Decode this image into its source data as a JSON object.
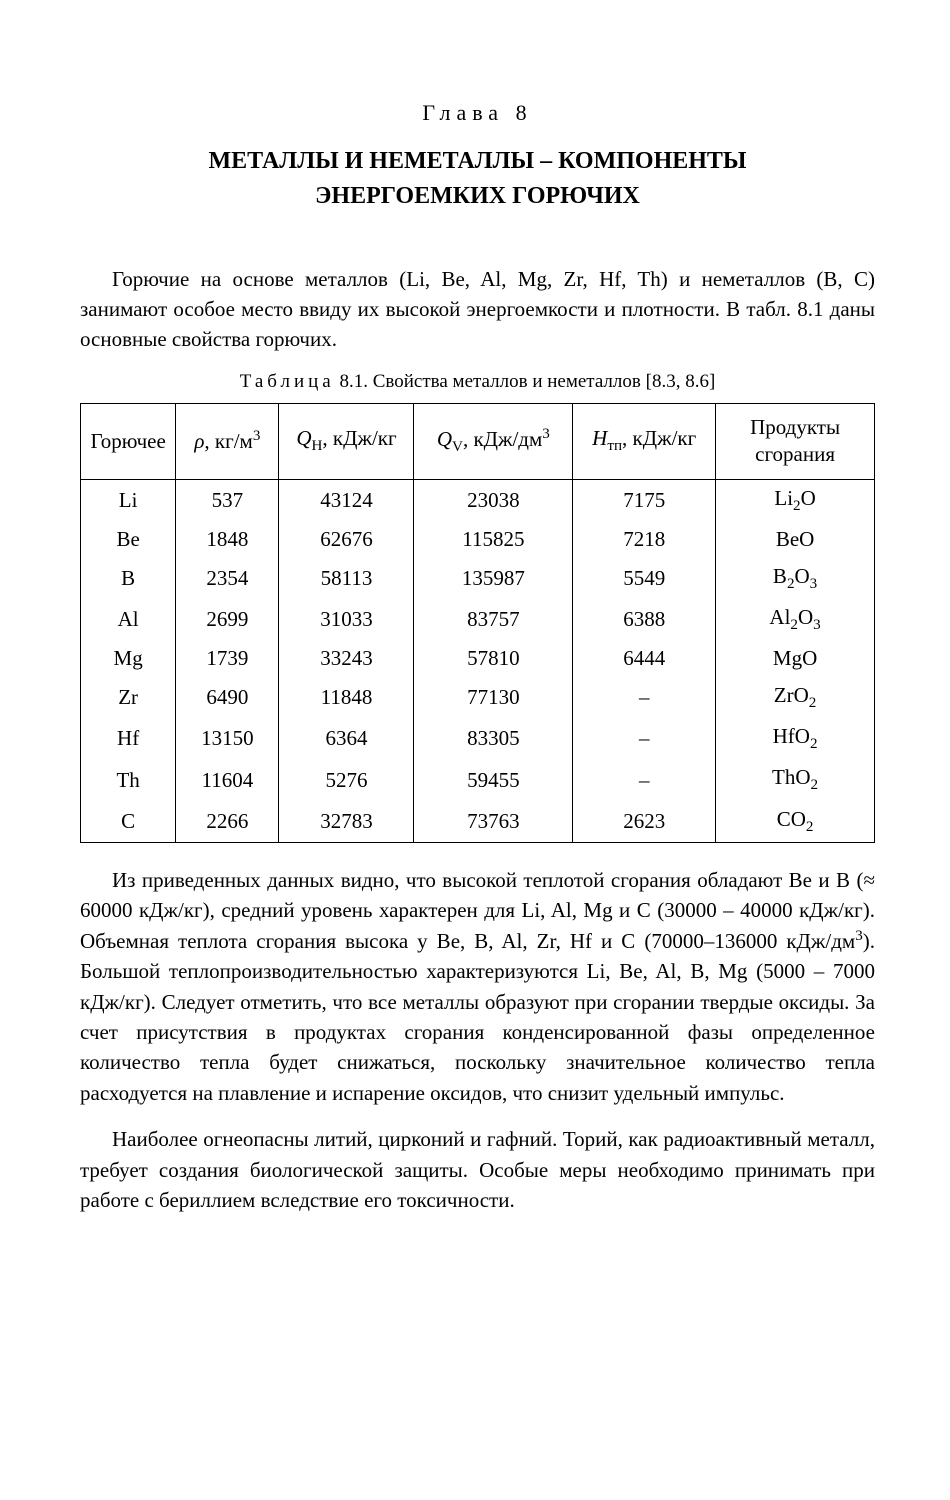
{
  "chapter": {
    "label": "Глава  8",
    "title_line1": "МЕТАЛЛЫ И НЕМЕТАЛЛЫ – КОМПОНЕНТЫ",
    "title_line2": "ЭНЕРГОЕМКИХ ГОРЮЧИХ"
  },
  "intro_paragraph_html": "Горючие на основе металлов (Li, Be, Al, Mg, Zr, Hf, Th) и неметаллов (B, C) занимают особое место ввиду их высокой энергоемкости и плотности. В табл. 8.1 даны основные свойства горючих.",
  "table": {
    "caption_prefix": "Таблица",
    "caption_text": " 8.1. Свойства металлов и неметаллов [8.3, 8.6]",
    "columns": {
      "fuel": "Горючее",
      "rho_html": "<span class=\"ital\">ρ</span>, кг/м<sup>3</sup>",
      "qh_html": "<span class=\"ital\">Q</span><sub>H</sub>, кДж/кг",
      "qv_html": "<span class=\"ital\">Q</span><sub>V</sub>, кДж/дм<sup>3</sup>",
      "htp_html": "<span class=\"ital\">H</span><sub>тп</sub>, кДж/кг",
      "products_html": "Продукты<br>сгорания"
    },
    "rows": [
      {
        "fuel": "Li",
        "rho": "537",
        "qh": "43124",
        "qv": "23038",
        "htp": "7175",
        "product_html": "Li<sub>2</sub>O"
      },
      {
        "fuel": "Be",
        "rho": "1848",
        "qh": "62676",
        "qv": "115825",
        "htp": "7218",
        "product_html": "BeO"
      },
      {
        "fuel": "B",
        "rho": "2354",
        "qh": "58113",
        "qv": "135987",
        "htp": "5549",
        "product_html": "B<sub>2</sub>O<sub>3</sub>"
      },
      {
        "fuel": "Al",
        "rho": "2699",
        "qh": "31033",
        "qv": "83757",
        "htp": "6388",
        "product_html": "Al<sub>2</sub>O<sub>3</sub>"
      },
      {
        "fuel": "Mg",
        "rho": "1739",
        "qh": "33243",
        "qv": "57810",
        "htp": "6444",
        "product_html": "MgO"
      },
      {
        "fuel": "Zr",
        "rho": "6490",
        "qh": "11848",
        "qv": "77130",
        "htp": "–",
        "product_html": "ZrO<sub>2</sub>"
      },
      {
        "fuel": "Hf",
        "rho": "13150",
        "qh": "6364",
        "qv": "83305",
        "htp": "–",
        "product_html": "HfO<sub>2</sub>"
      },
      {
        "fuel": "Th",
        "rho": "11604",
        "qh": "5276",
        "qv": "59455",
        "htp": "–",
        "product_html": "ThO<sub>2</sub>"
      },
      {
        "fuel": "C",
        "rho": "2266",
        "qh": "32783",
        "qv": "73763",
        "htp": "2623",
        "product_html": "CO<sub>2</sub>"
      }
    ]
  },
  "analysis_paragraph_html": "Из приведенных данных видно, что высокой теплотой сгорания обладают Be и B (≈ 60000 кДж/кг), средний уровень характерен для Li, Al, Mg и C (30000 – 40000 кДж/кг). Объемная теплота сгорания высока у Be, B, Al, Zr, Hf и C (70000–136000 кДж/дм<sup>3</sup>). Большой теплопроизводительностью характеризуются Li, Be, Al, B, Mg (5000 – 7000 кДж/кг). Следует отметить, что все металлы образуют при сгорании твердые оксиды. За счет присутствия в продуктах сгорания конденсированной фазы определенное количество тепла будет снижаться, поскольку значительное количество тепла расходуется на плавление и испарение оксидов, что снизит удельный импульс.",
  "safety_paragraph_html": "Наиболее огнеопасны литий, цирконий и гафний. Торий, как радиоактивный металл, требует создания биологической защиты. Особые меры необходимо принимать при работе с бериллием вследствие его токсичности."
}
